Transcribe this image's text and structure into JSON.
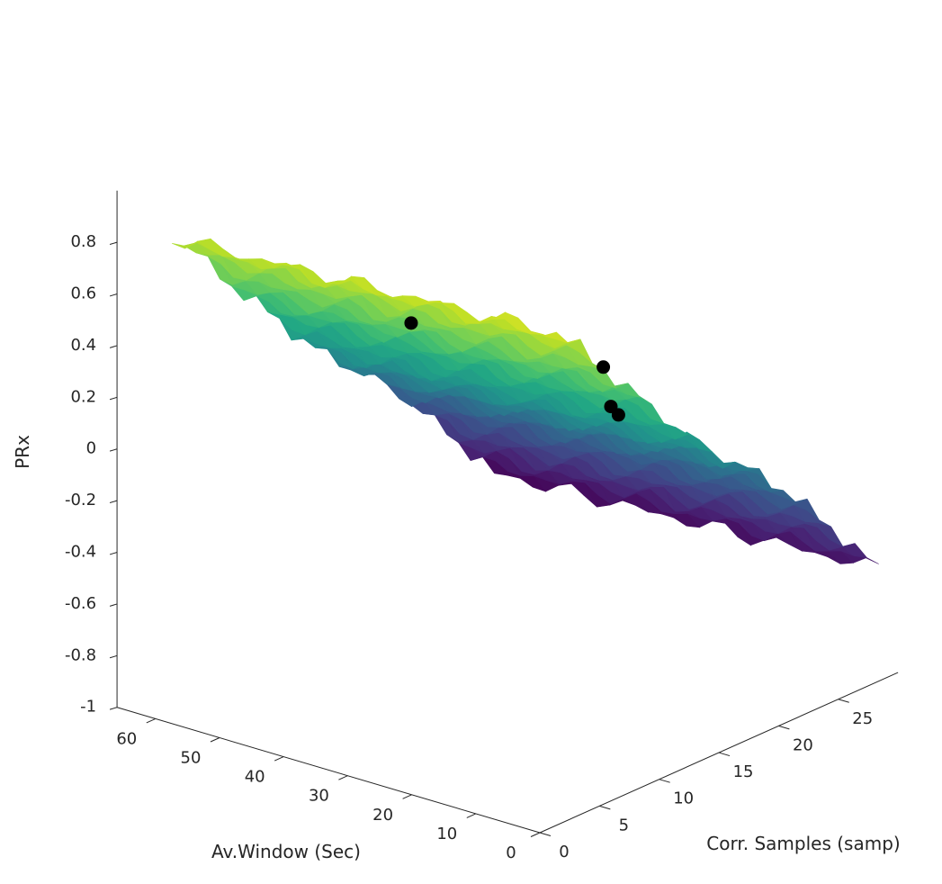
{
  "chart_data": {
    "type": "surface",
    "title": "",
    "xlabel": "Corr. Samples (samp)",
    "ylabel": "Av.Window (Sec)",
    "zlabel": "PRx",
    "xlim": [
      0,
      30
    ],
    "ylim": [
      0,
      66
    ],
    "zlim": [
      -1,
      1
    ],
    "x_ticks": [
      0,
      5,
      10,
      15,
      20,
      25
    ],
    "y_ticks": [
      0,
      10,
      20,
      30,
      40,
      50,
      60
    ],
    "z_ticks": [
      -1,
      -0.8,
      -0.6,
      -0.4,
      -0.2,
      0,
      0.2,
      0.4,
      0.6,
      0.8
    ],
    "z_tick_labels": [
      "-1",
      "-0.8",
      "-0.6",
      "-0.4",
      "-0.2",
      "0",
      "0.2",
      "0.4",
      "0.6",
      "0.8"
    ],
    "x_tick_labels": [
      "0",
      "5",
      "10",
      "15",
      "20",
      "25"
    ],
    "y_tick_labels": [
      "0",
      "10",
      "20",
      "30",
      "40",
      "50",
      "60"
    ],
    "colormap": "viridis",
    "surface_x_range": [
      3,
      30
    ],
    "surface_y_range": [
      3,
      63
    ],
    "surface_z_profile": {
      "x": [
        3,
        5,
        8,
        11,
        14,
        17,
        20,
        23,
        26,
        28,
        30
      ],
      "z": [
        0.85,
        0.75,
        0.56,
        0.4,
        0.22,
        0.08,
        -0.05,
        -0.2,
        -0.38,
        -0.5,
        -0.62
      ]
    },
    "surface_z_range": [
      -0.7,
      0.95
    ],
    "highlight_points": [
      {
        "x": 8,
        "y": 5,
        "z": 0.6
      },
      {
        "x": 8,
        "y": 35,
        "z": 0.55
      },
      {
        "x": 14,
        "y": 15,
        "z": 0.25
      },
      {
        "x": 20,
        "y": 25,
        "z": 0.02
      }
    ],
    "point_color": "#000000",
    "grid": false
  }
}
